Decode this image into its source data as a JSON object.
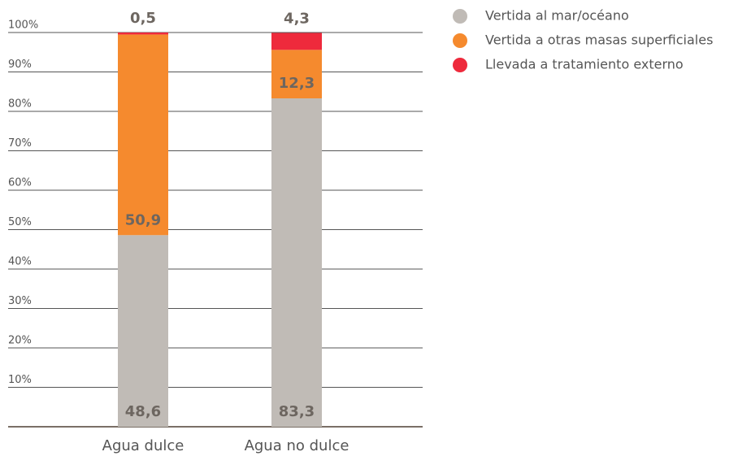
{
  "chart_data": {
    "type": "stacked_bar",
    "categories": [
      "Agua dulce",
      "Agua no dulce"
    ],
    "series": [
      {
        "name": "Vertida al mar/océano",
        "color": "#c0bbb6",
        "values": [
          48.6,
          83.3
        ],
        "value_labels": [
          "48,6",
          "83,3"
        ]
      },
      {
        "name": "Vertida a otras masas superficiales",
        "color": "#f58a2e",
        "values": [
          50.9,
          12.3
        ],
        "value_labels": [
          "50,9",
          "12,3"
        ]
      },
      {
        "name": "Llevada a tratamiento externo",
        "color": "#ee2a3c",
        "values": [
          0.5,
          4.3
        ],
        "value_labels": [
          "0,5",
          "4,3"
        ]
      }
    ],
    "ylim": [
      0,
      100
    ],
    "yticks": [
      {
        "value": 10,
        "label": "10%"
      },
      {
        "value": 20,
        "label": "20%"
      },
      {
        "value": 30,
        "label": "30%"
      },
      {
        "value": 40,
        "label": "40%"
      },
      {
        "value": 50,
        "label": "50%"
      },
      {
        "value": 60,
        "label": "60%"
      },
      {
        "value": 70,
        "label": "70%"
      },
      {
        "value": 80,
        "label": "80%"
      },
      {
        "value": 90,
        "label": "90%"
      },
      {
        "value": 100,
        "label": "100%"
      }
    ],
    "grid": true,
    "legend": "top-right"
  }
}
